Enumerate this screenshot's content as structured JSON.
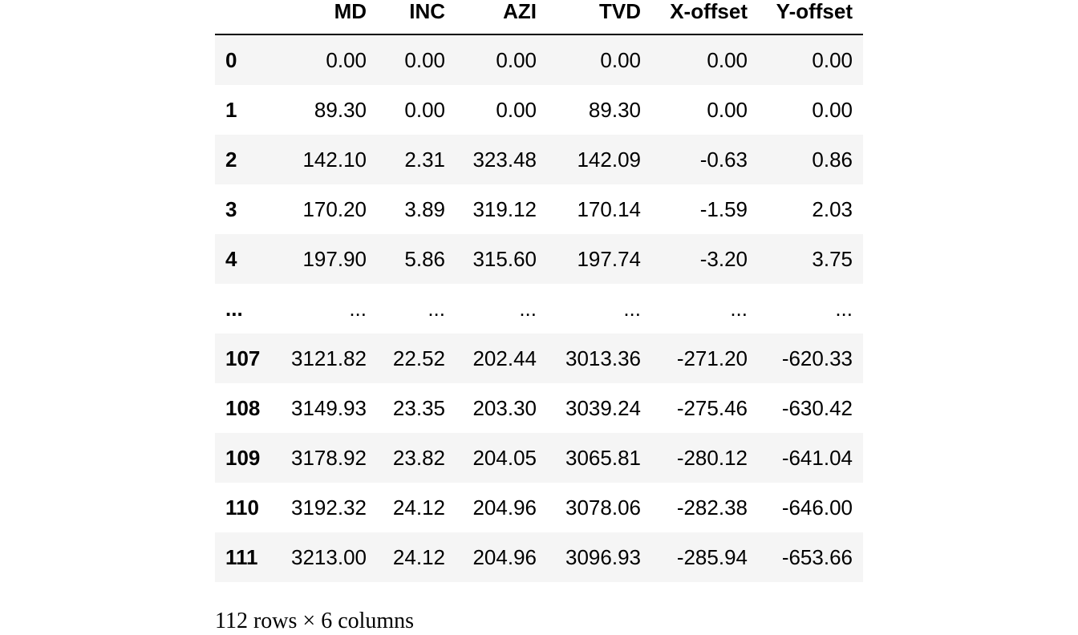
{
  "table": {
    "columns": [
      "MD",
      "INC",
      "AZI",
      "TVD",
      "X-offset",
      "Y-offset"
    ],
    "rows": [
      {
        "index": "0",
        "cells": [
          "0.00",
          "0.00",
          "0.00",
          "0.00",
          "0.00",
          "0.00"
        ]
      },
      {
        "index": "1",
        "cells": [
          "89.30",
          "0.00",
          "0.00",
          "89.30",
          "0.00",
          "0.00"
        ]
      },
      {
        "index": "2",
        "cells": [
          "142.10",
          "2.31",
          "323.48",
          "142.09",
          "-0.63",
          "0.86"
        ]
      },
      {
        "index": "3",
        "cells": [
          "170.20",
          "3.89",
          "319.12",
          "170.14",
          "-1.59",
          "2.03"
        ]
      },
      {
        "index": "4",
        "cells": [
          "197.90",
          "5.86",
          "315.60",
          "197.74",
          "-3.20",
          "3.75"
        ]
      },
      {
        "index": "...",
        "cells": [
          "...",
          "...",
          "...",
          "...",
          "...",
          "..."
        ]
      },
      {
        "index": "107",
        "cells": [
          "3121.82",
          "22.52",
          "202.44",
          "3013.36",
          "-271.20",
          "-620.33"
        ]
      },
      {
        "index": "108",
        "cells": [
          "3149.93",
          "23.35",
          "203.30",
          "3039.24",
          "-275.46",
          "-630.42"
        ]
      },
      {
        "index": "109",
        "cells": [
          "3178.92",
          "23.82",
          "204.05",
          "3065.81",
          "-280.12",
          "-641.04"
        ]
      },
      {
        "index": "110",
        "cells": [
          "3192.32",
          "24.12",
          "204.96",
          "3078.06",
          "-282.38",
          "-646.00"
        ]
      },
      {
        "index": "111",
        "cells": [
          "3213.00",
          "24.12",
          "204.96",
          "3096.93",
          "-285.94",
          "-653.66"
        ]
      }
    ]
  },
  "footer": {
    "shape_text": "112 rows × 6 columns"
  }
}
